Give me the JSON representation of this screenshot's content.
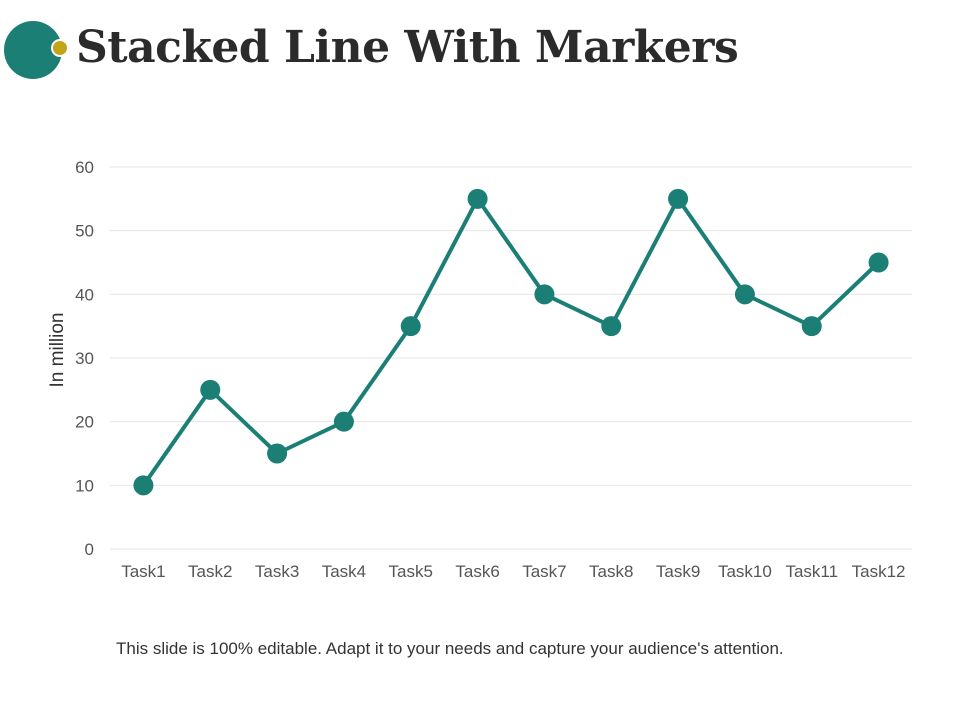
{
  "slide": {
    "title": "Stacked Line With Markers",
    "caption": "This slide is 100% editable. Adapt it to your needs and capture your audience's attention."
  },
  "colors": {
    "series": "#1b7f76",
    "logo_primary": "#1b7f76",
    "logo_accent": "#c2a418",
    "gridline": "#e6e6e6",
    "axis_text": "#555555",
    "title_text": "#2b2b2b"
  },
  "chart_data": {
    "type": "line",
    "categories": [
      "Task1",
      "Task2",
      "Task3",
      "Task4",
      "Task5",
      "Task6",
      "Task7",
      "Task8",
      "Task9",
      "Task10",
      "Task11",
      "Task12"
    ],
    "series": [
      {
        "values": [
          10,
          25,
          15,
          20,
          35,
          55,
          40,
          35,
          55,
          40,
          35,
          45
        ]
      }
    ],
    "ylabel": "In million",
    "ylim": [
      0,
      60
    ],
    "yticks": [
      0,
      10,
      20,
      30,
      40,
      50,
      60
    ],
    "grid": true,
    "markers": true,
    "legend": "none"
  }
}
